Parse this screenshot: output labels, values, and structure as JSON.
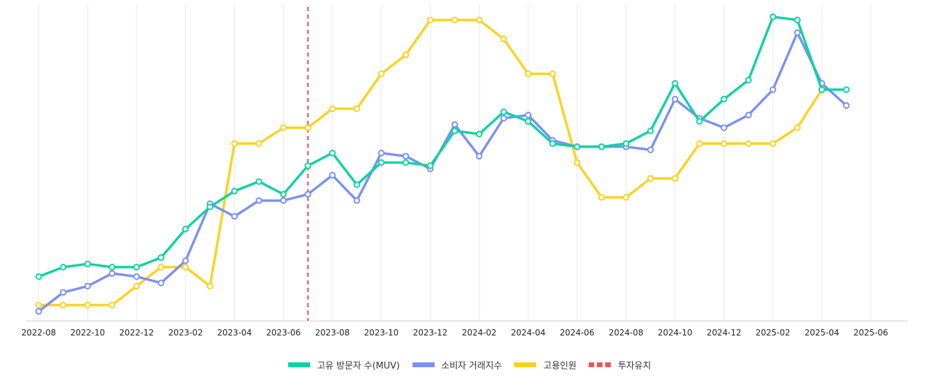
{
  "chart_data": {
    "type": "line",
    "title": "",
    "xlabel": "",
    "ylabel": "",
    "grid": {
      "vertical": true,
      "horizontal": false
    },
    "legend_position": "bottom",
    "x_tick_labels": [
      "2022-08",
      "2022-10",
      "2022-12",
      "2023-02",
      "2023-04",
      "2023-06",
      "2023-08",
      "2023-10",
      "2023-12",
      "2024-02",
      "2024-04",
      "2024-06",
      "2024-08",
      "2024-10",
      "2024-12",
      "2025-02",
      "2025-04",
      "2025-06"
    ],
    "x": [
      "2022-08",
      "2022-09",
      "2022-10",
      "2022-11",
      "2022-12",
      "2023-01",
      "2023-02",
      "2023-03",
      "2023-04",
      "2023-05",
      "2023-06",
      "2023-07",
      "2023-08",
      "2023-09",
      "2023-10",
      "2023-11",
      "2023-12",
      "2024-01",
      "2024-02",
      "2024-03",
      "2024-04",
      "2024-05",
      "2024-06",
      "2024-07",
      "2024-08",
      "2024-09",
      "2024-10",
      "2024-11",
      "2024-12",
      "2025-01",
      "2025-02",
      "2025-03",
      "2025-04",
      "2025-05"
    ],
    "ylim": [
      0,
      100
    ],
    "y_note": "Relative index (no y-axis shown); values normalized 0-100 from plot height",
    "series": [
      {
        "name": "고유 방문자 수(MUV)",
        "color": "#0dd3a0",
        "values": [
          14,
          17,
          18,
          17,
          17,
          20,
          29,
          36,
          41,
          44,
          40,
          49,
          53,
          43,
          50,
          50,
          49,
          60,
          59,
          66,
          63,
          56,
          55,
          55,
          56,
          60,
          75,
          63,
          70,
          76,
          96,
          95,
          73,
          73
        ]
      },
      {
        "name": "소비자 거래지수",
        "color": "#7a90f5",
        "values": [
          3,
          9,
          11,
          15,
          14,
          12,
          19,
          37,
          33,
          38,
          38,
          40,
          46,
          38,
          53,
          52,
          48,
          62,
          52,
          64,
          65,
          57,
          55,
          55,
          55,
          54,
          70,
          64,
          61,
          65,
          73,
          91,
          75,
          68
        ]
      },
      {
        "name": "고용인원",
        "color": "#fdd21f",
        "values": [
          5,
          5,
          5,
          5,
          11,
          17,
          17,
          11,
          56,
          56,
          61,
          61,
          67,
          67,
          78,
          84,
          95,
          95,
          95,
          89,
          78,
          78,
          50,
          39,
          39,
          45,
          45,
          56,
          56,
          56,
          56,
          61,
          73,
          null
        ]
      }
    ],
    "annotations": [
      {
        "type": "vertical-dashed-line",
        "label": "투자유치",
        "x": "2023-07",
        "color": "#e8575a"
      }
    ]
  },
  "legend": {
    "items": [
      {
        "label": "고유 방문자 수(MUV)",
        "color": "#0dd3a0",
        "style": "solid"
      },
      {
        "label": "소비자 거래지수",
        "color": "#7a90f5",
        "style": "solid"
      },
      {
        "label": "고용인원",
        "color": "#fdd21f",
        "style": "solid"
      },
      {
        "label": "투자유치",
        "color": "#e8575a",
        "style": "dashed"
      }
    ]
  }
}
